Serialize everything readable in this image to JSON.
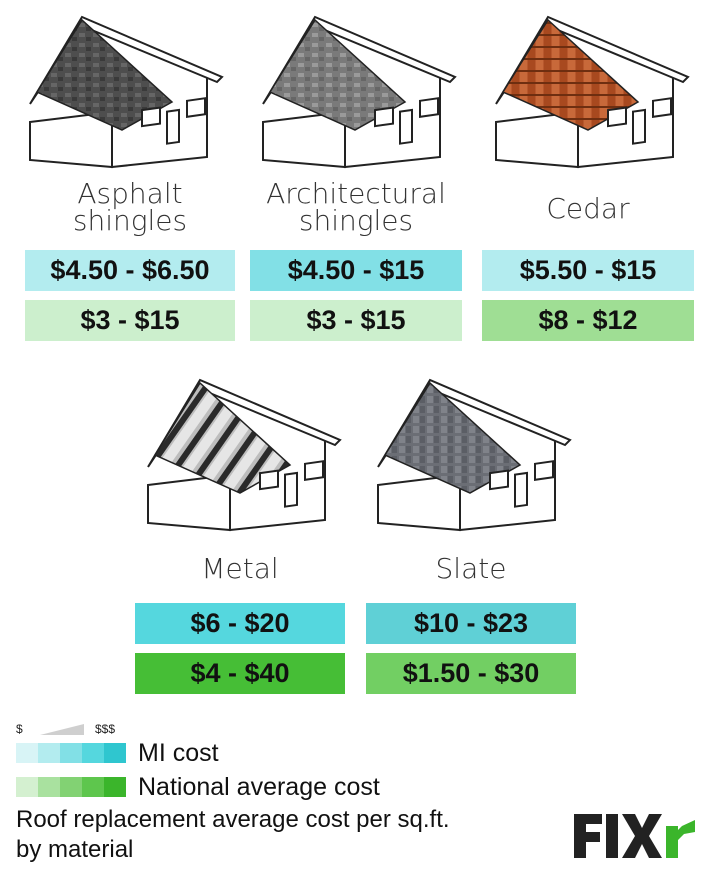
{
  "materials": [
    {
      "name_line1": "Asphalt",
      "name_line2": "shingles",
      "mi_cost": "$4.50 - $6.50",
      "national_cost": "$3 - $15",
      "mi_color": "#b3ecef",
      "nat_color": "#ccefcd"
    },
    {
      "name_line1": "Architectural",
      "name_line2": "shingles",
      "mi_cost": "$4.50 - $15",
      "national_cost": "$3 - $15",
      "mi_color": "#82e0e6",
      "nat_color": "#ccefcd"
    },
    {
      "name_line1": "Cedar",
      "name_line2": "",
      "mi_cost": "$5.50 - $15",
      "national_cost": "$8 - $12",
      "mi_color": "#b3ecef",
      "nat_color": "#9fde94"
    },
    {
      "name_line1": "Metal",
      "name_line2": "",
      "mi_cost": "$6 - $20",
      "national_cost": "$4 - $40",
      "mi_color": "#55d7de",
      "nat_color": "#46be36"
    },
    {
      "name_line1": "Slate",
      "name_line2": "",
      "mi_cost": "$10 - $23",
      "national_cost": "$1.50 - $30",
      "mi_color": "#5fd0d6",
      "nat_color": "#72cf63"
    }
  ],
  "legend": {
    "low_symbol": "$",
    "high_symbol": "$$$",
    "mi_label": "MI cost",
    "national_label": "National average cost",
    "mi_scale_colors": [
      "#d8f4f6",
      "#b3ecef",
      "#82e0e6",
      "#55d7de",
      "#2fc6cf"
    ],
    "national_scale_colors": [
      "#d4f0d0",
      "#a9e19f",
      "#82d273",
      "#5ec64d",
      "#3bb52b"
    ]
  },
  "caption": {
    "line1": "Roof replacement average cost per sq.ft.",
    "line2": "by material"
  },
  "logo": {
    "text": "FIXr"
  },
  "icons": {
    "house": "house-icon"
  }
}
